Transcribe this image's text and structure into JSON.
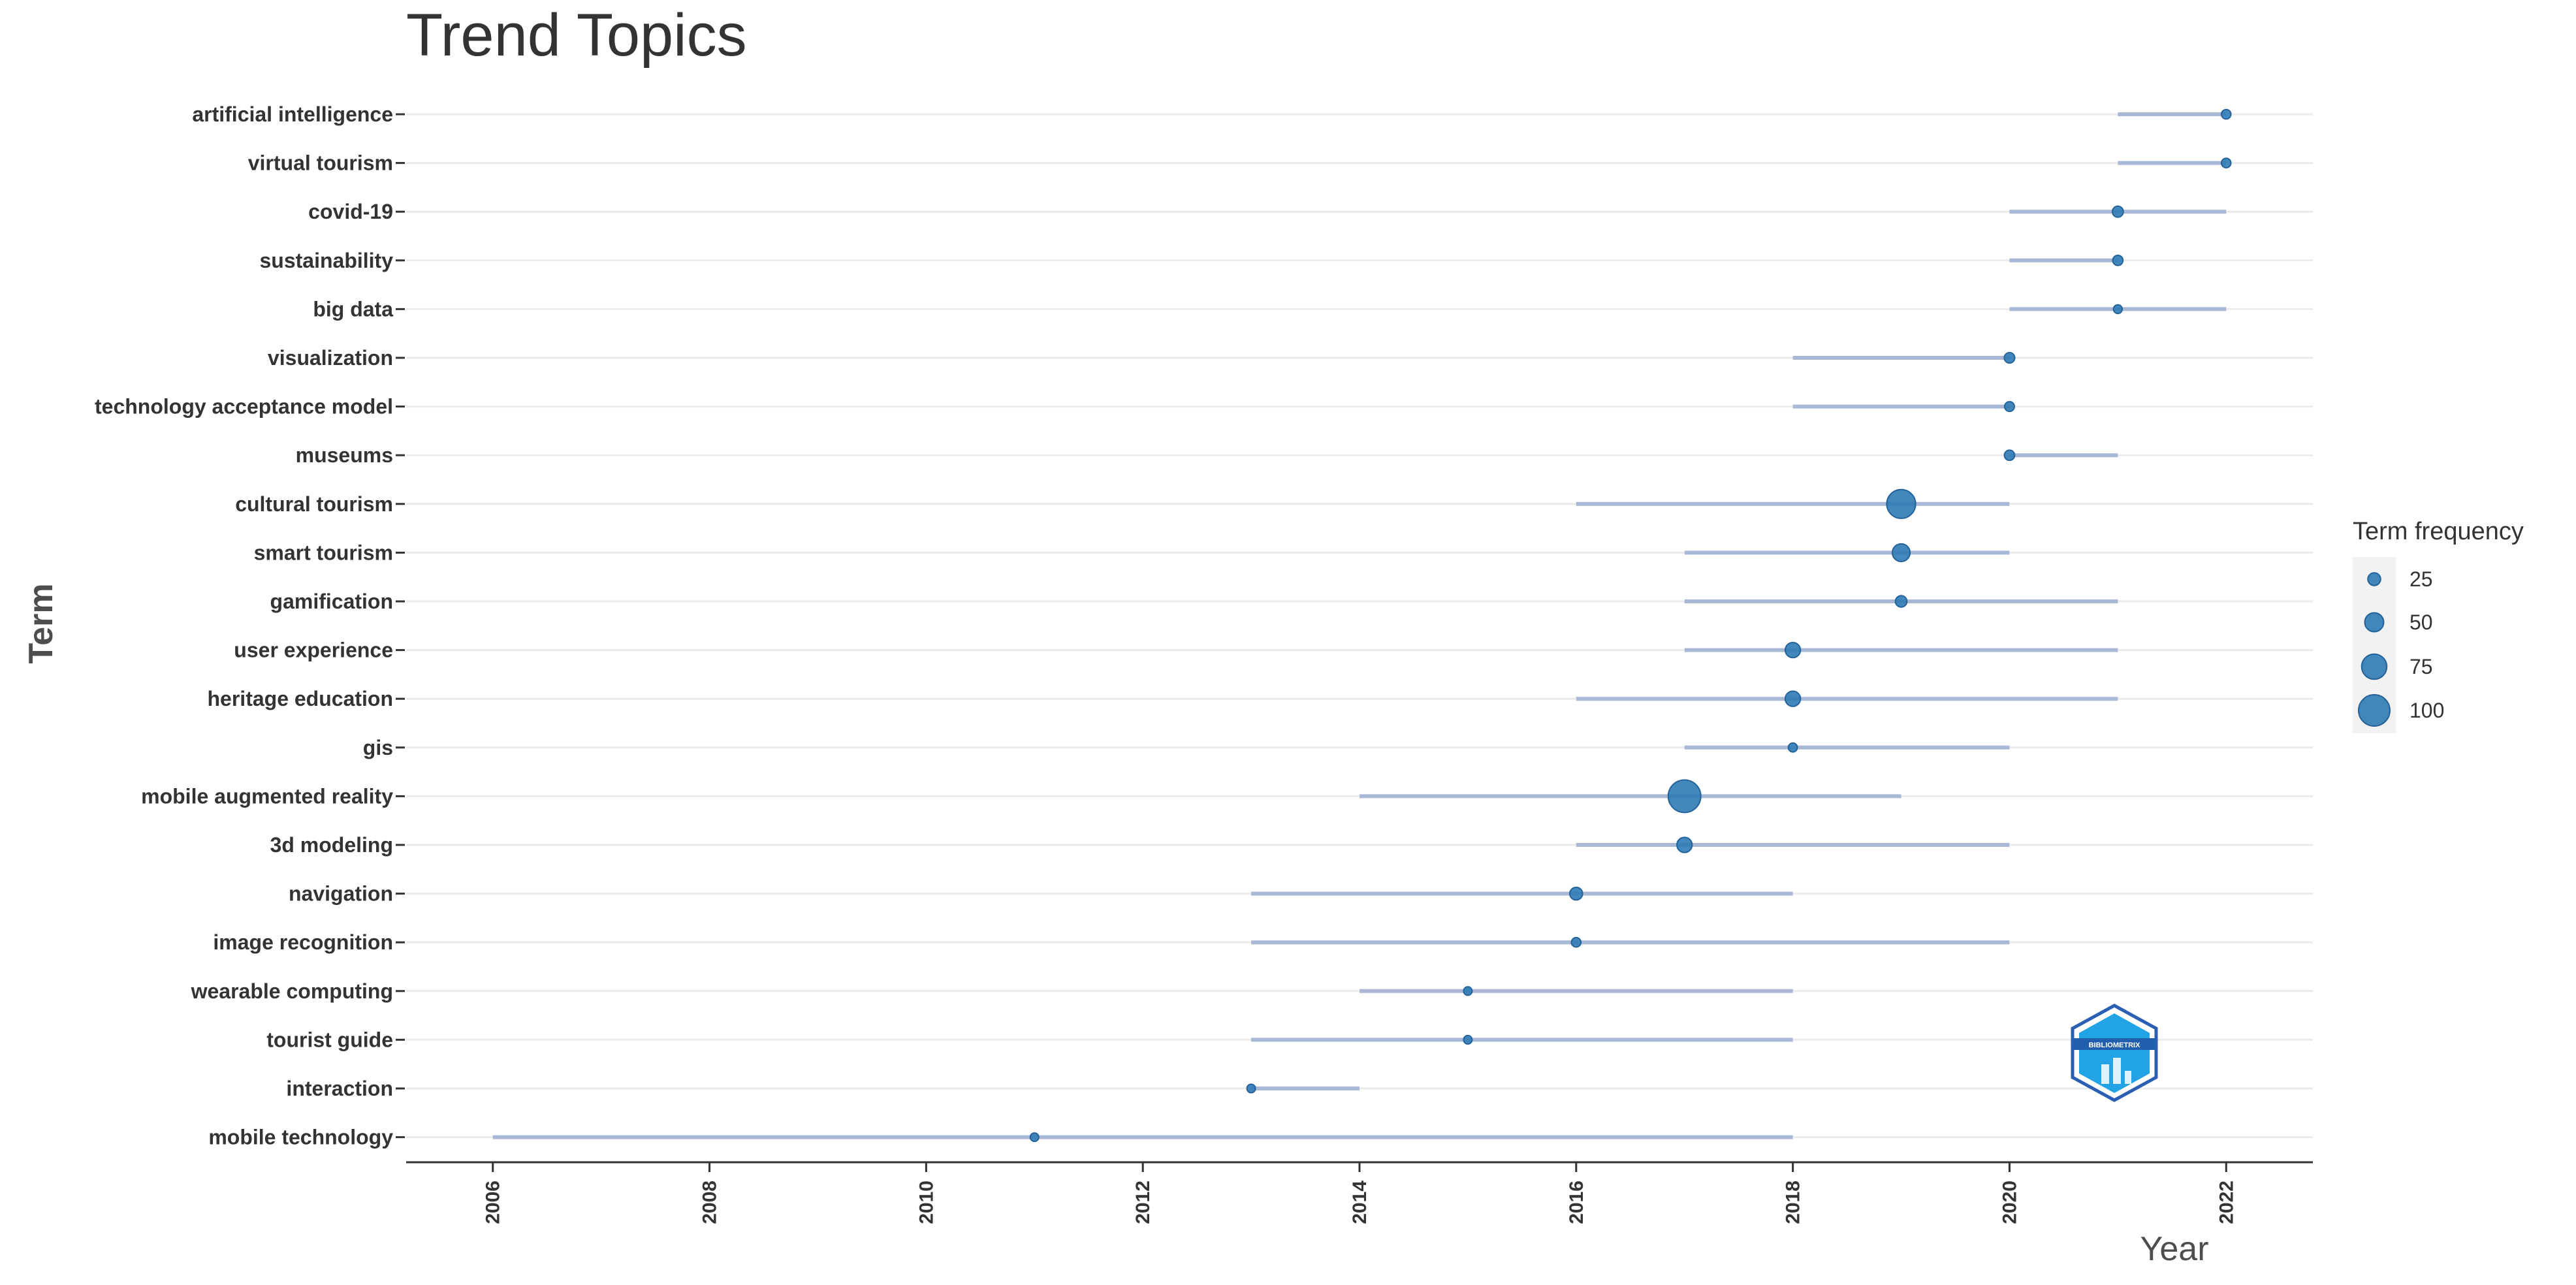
{
  "chart_data": {
    "type": "scatter",
    "title": "Trend Topics",
    "xlabel": "Year",
    "ylabel": "Term",
    "xlim": [
      2005.2,
      2022.8
    ],
    "x_ticks": [
      2006,
      2008,
      2010,
      2012,
      2014,
      2016,
      2018,
      2020,
      2022
    ],
    "x_tick_labels": [
      "2006",
      "2008",
      "2010",
      "2012",
      "2014",
      "2016",
      "2018",
      "2020",
      "2022"
    ],
    "terms": [
      {
        "term": "artificial intelligence",
        "start": 2021,
        "median": 2022,
        "end": 2022,
        "freq": 12
      },
      {
        "term": "virtual tourism",
        "start": 2021,
        "median": 2022,
        "end": 2022,
        "freq": 12
      },
      {
        "term": "covid-19",
        "start": 2020,
        "median": 2021,
        "end": 2022,
        "freq": 18
      },
      {
        "term": "sustainability",
        "start": 2020,
        "median": 2021,
        "end": 2021,
        "freq": 15
      },
      {
        "term": "big data",
        "start": 2020,
        "median": 2021,
        "end": 2022,
        "freq": 9
      },
      {
        "term": "visualization",
        "start": 2018,
        "median": 2020,
        "end": 2020,
        "freq": 16
      },
      {
        "term": "technology acceptance model",
        "start": 2018,
        "median": 2020,
        "end": 2020,
        "freq": 13
      },
      {
        "term": "museums",
        "start": 2020,
        "median": 2020,
        "end": 2021,
        "freq": 15
      },
      {
        "term": "cultural tourism",
        "start": 2016,
        "median": 2019,
        "end": 2020,
        "freq": 90
      },
      {
        "term": "smart tourism",
        "start": 2017,
        "median": 2019,
        "end": 2020,
        "freq": 45
      },
      {
        "term": "gamification",
        "start": 2017,
        "median": 2019,
        "end": 2021,
        "freq": 20
      },
      {
        "term": "user experience",
        "start": 2017,
        "median": 2018,
        "end": 2021,
        "freq": 35
      },
      {
        "term": "heritage education",
        "start": 2016,
        "median": 2018,
        "end": 2021,
        "freq": 35
      },
      {
        "term": "gis",
        "start": 2017,
        "median": 2018,
        "end": 2020,
        "freq": 10
      },
      {
        "term": "mobile augmented reality",
        "start": 2014,
        "median": 2017,
        "end": 2019,
        "freq": 105
      },
      {
        "term": "3d modeling",
        "start": 2016,
        "median": 2017,
        "end": 2020,
        "freq": 35
      },
      {
        "term": "navigation",
        "start": 2013,
        "median": 2016,
        "end": 2018,
        "freq": 25
      },
      {
        "term": "image recognition",
        "start": 2013,
        "median": 2016,
        "end": 2020,
        "freq": 12
      },
      {
        "term": "wearable computing",
        "start": 2014,
        "median": 2015,
        "end": 2018,
        "freq": 8
      },
      {
        "term": "tourist guide",
        "start": 2013,
        "median": 2015,
        "end": 2018,
        "freq": 8
      },
      {
        "term": "interaction",
        "start": 2013,
        "median": 2013,
        "end": 2014,
        "freq": 8
      },
      {
        "term": "mobile technology",
        "start": 2006,
        "median": 2011,
        "end": 2018,
        "freq": 8
      }
    ],
    "legend": {
      "title": "Term frequency",
      "entries": [
        {
          "label": "25",
          "value": 25
        },
        {
          "label": "50",
          "value": 50
        },
        {
          "label": "75",
          "value": 75
        },
        {
          "label": "100",
          "value": 100
        }
      ],
      "position": "right"
    },
    "grid": true,
    "point_color": "#2e7bb5",
    "segment_color": "#a9b8d6",
    "gridline_color": "#ebebeb"
  },
  "watermark": {
    "text": "BIBLIOMETRIX"
  }
}
